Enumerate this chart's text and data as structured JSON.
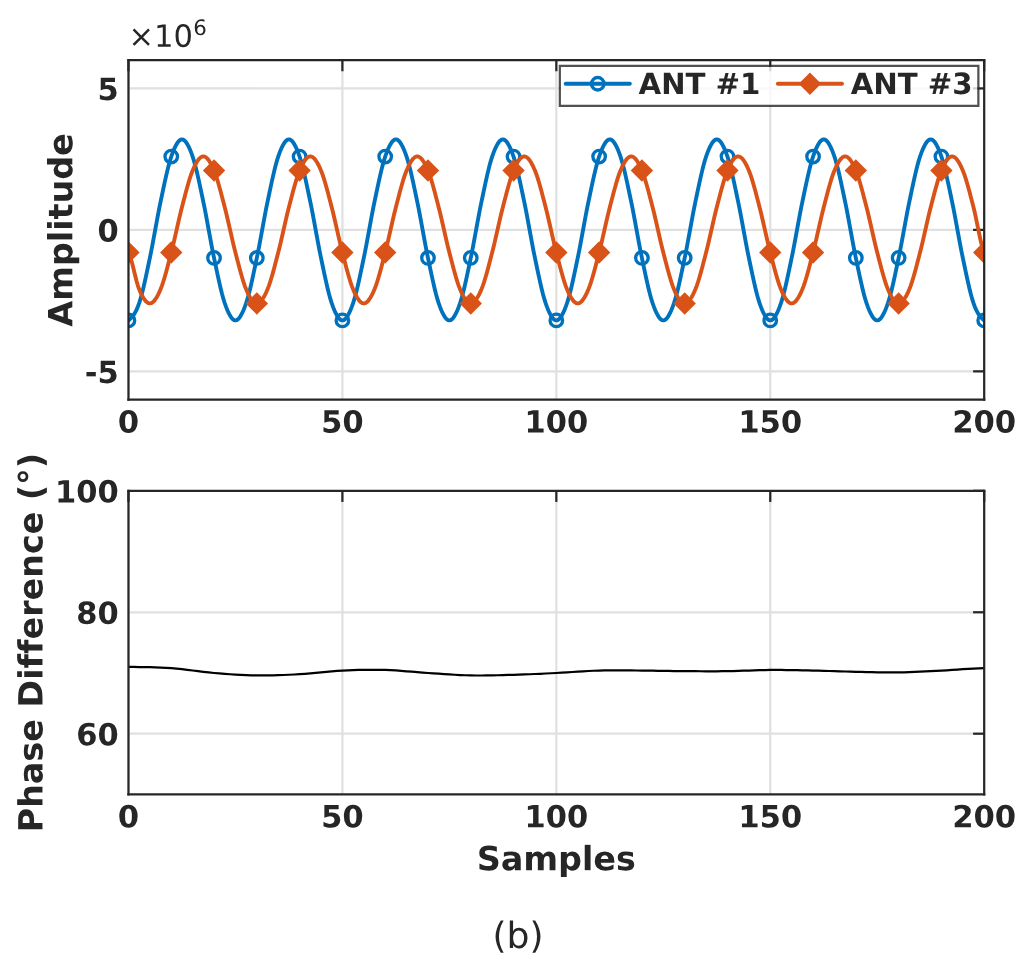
{
  "chart_data": [
    {
      "type": "line",
      "ylabel": "Amplitude",
      "annotations": [
        "×10$^{6}$"
      ],
      "x": [
        0,
        2.5,
        5,
        7.5,
        10,
        12.5,
        15,
        17.5,
        20,
        22.5,
        25,
        27.5,
        30,
        32.5,
        35,
        37.5,
        40,
        42.5,
        45,
        47.5,
        50,
        52.5,
        55,
        57.5,
        60,
        62.5,
        65,
        67.5,
        70,
        72.5,
        75,
        77.5,
        80,
        82.5,
        85,
        87.5,
        90,
        92.5,
        95,
        97.5,
        100,
        102.5,
        105,
        107.5,
        110,
        112.5,
        115,
        117.5,
        120,
        122.5,
        125,
        127.5,
        130,
        132.5,
        135,
        137.5,
        140,
        142.5,
        145,
        147.5,
        150,
        152.5,
        155,
        157.5,
        160,
        162.5,
        165,
        167.5,
        170,
        172.5,
        175,
        177.5,
        180,
        182.5,
        185,
        187.5,
        190,
        192.5,
        195,
        197.5,
        200
      ],
      "series": [
        {
          "name": "ANT #1",
          "color": "#0072bd",
          "values": [
            -3.2,
            -2.59,
            -0.99,
            0.99,
            2.59,
            3.2,
            2.59,
            0.99,
            -0.99,
            -2.59,
            -3.2,
            -2.59,
            -0.99,
            0.99,
            2.59,
            3.2,
            2.59,
            0.99,
            -0.99,
            -2.59,
            -3.2,
            -2.59,
            -0.99,
            0.99,
            2.59,
            3.2,
            2.59,
            0.99,
            -0.99,
            -2.59,
            -3.2,
            -2.59,
            -0.99,
            0.99,
            2.59,
            3.2,
            2.59,
            0.99,
            -0.99,
            -2.59,
            -3.2,
            -2.59,
            -0.99,
            0.99,
            2.59,
            3.2,
            2.59,
            0.99,
            -0.99,
            -2.59,
            -3.2,
            -2.59,
            -0.99,
            0.99,
            2.59,
            3.2,
            2.59,
            0.99,
            -0.99,
            -2.59,
            -3.2,
            -2.59,
            -0.99,
            0.99,
            2.59,
            3.2,
            2.59,
            0.99,
            -0.99,
            -2.59,
            -3.2,
            -2.59,
            -0.99,
            0.99,
            2.59,
            3.2,
            2.59,
            0.99,
            -0.99,
            -2.59,
            -3.2
          ]
        },
        {
          "type": "scatter",
          "color": "#0072bd",
          "marker": "circle",
          "x": [
            0,
            10,
            20,
            30,
            40,
            50,
            60,
            70,
            80,
            90,
            100,
            110,
            120,
            130,
            140,
            150,
            160,
            170,
            180,
            190,
            200
          ],
          "values": [
            -3.2,
            2.59,
            -0.99,
            -0.99,
            2.59,
            -3.2,
            2.59,
            -0.99,
            -0.99,
            2.59,
            -3.2,
            2.59,
            -0.99,
            -0.99,
            2.59,
            -3.2,
            2.59,
            -0.99,
            -0.99,
            2.59,
            -3.2
          ]
        },
        {
          "name": "ANT #3",
          "color": "#d95319",
          "values": [
            -0.8,
            -2.1,
            -2.6,
            -2.1,
            -0.8,
            0.8,
            2.1,
            2.6,
            2.1,
            0.8,
            -0.8,
            -2.1,
            -2.6,
            -2.1,
            -0.8,
            0.8,
            2.1,
            2.6,
            2.1,
            0.8,
            -0.8,
            -2.1,
            -2.6,
            -2.1,
            -0.8,
            0.8,
            2.1,
            2.6,
            2.1,
            0.8,
            -0.8,
            -2.1,
            -2.6,
            -2.1,
            -0.8,
            0.8,
            2.1,
            2.6,
            2.1,
            0.8,
            -0.8,
            -2.1,
            -2.6,
            -2.1,
            -0.8,
            0.8,
            2.1,
            2.6,
            2.1,
            0.8,
            -0.8,
            -2.1,
            -2.6,
            -2.1,
            -0.8,
            0.8,
            2.1,
            2.6,
            2.1,
            0.8,
            -0.8,
            -2.1,
            -2.6,
            -2.1,
            -0.8,
            0.8,
            2.1,
            2.6,
            2.1,
            0.8,
            -0.8,
            -2.1,
            -2.6,
            -2.1,
            -0.8,
            0.8,
            2.1,
            2.6,
            2.1,
            0.8,
            -0.8
          ]
        },
        {
          "type": "scatter",
          "color": "#d95319",
          "marker": "diamond",
          "x": [
            0,
            10,
            20,
            30,
            40,
            50,
            60,
            70,
            80,
            90,
            100,
            110,
            120,
            130,
            140,
            150,
            160,
            170,
            180,
            190,
            200
          ],
          "values": [
            -0.8,
            -0.8,
            2.1,
            -2.6,
            2.1,
            -0.8,
            -0.8,
            2.1,
            -2.6,
            2.1,
            -0.8,
            -0.8,
            2.1,
            -2.6,
            2.1,
            -0.8,
            -0.8,
            2.1,
            -2.6,
            2.1,
            -0.8
          ]
        }
      ],
      "xlim": [
        0,
        200
      ],
      "xticks": [
        0,
        50,
        100,
        150,
        200
      ],
      "ylim": [
        -6,
        6
      ],
      "yticks": [
        -5,
        0,
        5
      ],
      "grid": true,
      "legend": "top right",
      "line_style": "solid"
    },
    {
      "type": "line",
      "xlabel": "Samples",
      "ylabel": "Phase Difference (°)",
      "annotations": [
        "(b)"
      ],
      "x": [
        0,
        10,
        20,
        30,
        40,
        50,
        60,
        70,
        80,
        90,
        100,
        110,
        120,
        130,
        140,
        150,
        160,
        170,
        180,
        190,
        200
      ],
      "series": [
        {
          "color": "#000000",
          "values": [
            71,
            70.8,
            70,
            69.6,
            69.8,
            70.4,
            70.5,
            70,
            69.6,
            69.7,
            70,
            70.4,
            70.4,
            70.3,
            70.3,
            70.5,
            70.4,
            70.2,
            70.1,
            70.4,
            70.8
          ]
        }
      ],
      "xlim": [
        0,
        200
      ],
      "xticks": [
        0,
        50,
        100,
        150,
        200
      ],
      "ylim": [
        50,
        100
      ],
      "yticks": [
        60,
        80,
        100
      ],
      "grid": true,
      "line_style": "solid"
    }
  ]
}
